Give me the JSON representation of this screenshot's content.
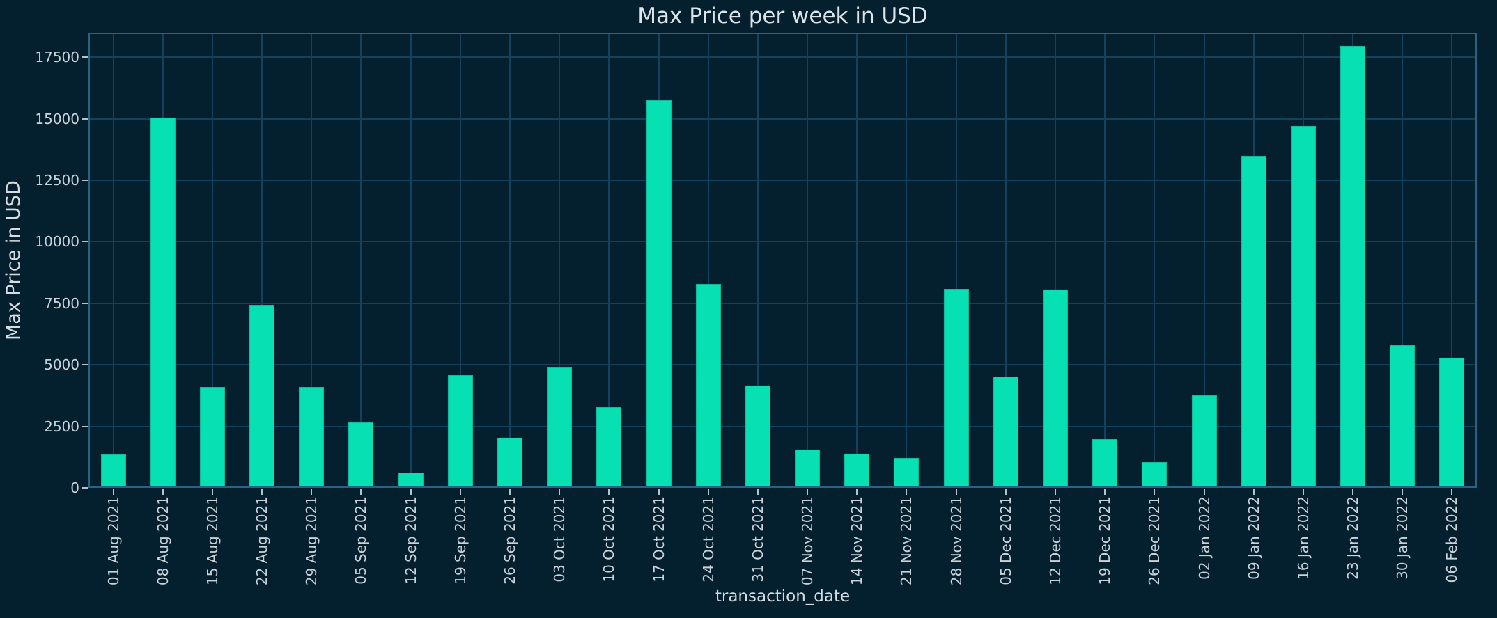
{
  "chart_data": {
    "type": "bar",
    "title": "Max Price per week in USD",
    "xlabel": "transaction_date",
    "ylabel": "Max Price in USD",
    "categories": [
      "01 Aug 2021",
      "08 Aug 2021",
      "15 Aug 2021",
      "22 Aug 2021",
      "29 Aug 2021",
      "05 Sep 2021",
      "12 Sep 2021",
      "19 Sep 2021",
      "26 Sep 2021",
      "03 Oct 2021",
      "10 Oct 2021",
      "17 Oct 2021",
      "24 Oct 2021",
      "31 Oct 2021",
      "07 Nov 2021",
      "14 Nov 2021",
      "21 Nov 2021",
      "28 Nov 2021",
      "05 Dec 2021",
      "12 Dec 2021",
      "19 Dec 2021",
      "26 Dec 2021",
      "02 Jan 2022",
      "09 Jan 2022",
      "16 Jan 2022",
      "23 Jan 2022",
      "30 Jan 2022",
      "06 Feb 2022"
    ],
    "values": [
      1350,
      15050,
      4100,
      7450,
      4100,
      2650,
      620,
      4570,
      2050,
      4900,
      3270,
      15750,
      8300,
      4150,
      1550,
      1400,
      1220,
      8100,
      4540,
      8050,
      1980,
      1050,
      3770,
      13500,
      14700,
      17950,
      5800,
      5300
    ],
    "yticks": [
      0,
      2500,
      5000,
      7500,
      10000,
      12500,
      15000,
      17500
    ],
    "ylim": [
      0,
      18500
    ],
    "grid": true,
    "legend": null,
    "bar_orientation": "vertical",
    "colors": {
      "background": "#041f2e",
      "bar_fill": "#06e0b2",
      "bar_edge": "#0cbd9b",
      "gridline": "#14425c",
      "spine": "#2a6284",
      "tick_mark": "#b6c1c9",
      "tick_label": "#c9d3da",
      "axis_label": "#d5dde3",
      "title": "#dde5ea"
    }
  }
}
